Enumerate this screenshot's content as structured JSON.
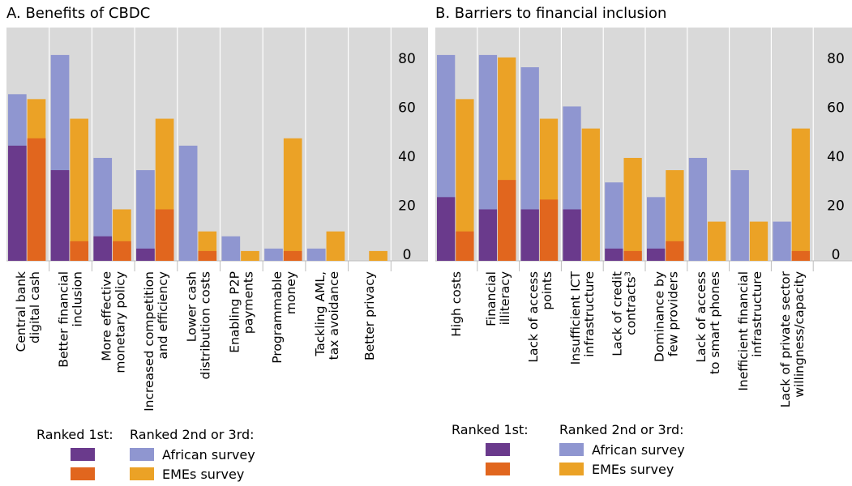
{
  "colors": {
    "african_ranked1": "#6a3a8c",
    "african_ranked23": "#8f96d0",
    "emes_ranked1": "#e1661e",
    "emes_ranked23": "#eba226",
    "panel_bg": "#d9d9d9",
    "grid": "#ffffff"
  },
  "legend": {
    "ranked1_label": "Ranked 1st:",
    "ranked23_label": "Ranked 2nd or 3rd:",
    "african": "African survey",
    "emes": "EMEs survey"
  },
  "chart_data": [
    {
      "type": "bar",
      "title": "A. Benefits of CBDC",
      "yticks": [
        "0",
        "20",
        "40",
        "60",
        "80"
      ],
      "ylim": [
        0,
        100
      ],
      "categories": [
        {
          "lines": [
            "Central bank",
            "digital cash"
          ]
        },
        {
          "lines": [
            "Better financial",
            "inclusion"
          ]
        },
        {
          "lines": [
            "More effective",
            "monetary policy"
          ]
        },
        {
          "lines": [
            "Increased competition",
            "and efficiency"
          ]
        },
        {
          "lines": [
            "Lower cash",
            "distribution costs"
          ]
        },
        {
          "lines": [
            "Enabling P2P",
            "payments"
          ]
        },
        {
          "lines": [
            "Programmable",
            "money"
          ]
        },
        {
          "lines": [
            "Tackling AML,",
            "tax avoidance"
          ]
        },
        {
          "lines": [
            "Better privacy"
          ]
        }
      ],
      "series": [
        {
          "name": "African survey",
          "ranked1": [
            47,
            37,
            10,
            5,
            0,
            0,
            0,
            0,
            0
          ],
          "total": [
            68,
            84,
            42,
            37,
            47,
            10,
            5,
            5,
            0
          ]
        },
        {
          "name": "EMEs survey",
          "ranked1": [
            50,
            8,
            8,
            21,
            4,
            0,
            4,
            0,
            0
          ],
          "total": [
            66,
            58,
            21,
            58,
            12,
            4,
            50,
            12,
            4
          ]
        }
      ]
    },
    {
      "type": "bar",
      "title": "B. Barriers to financial inclusion",
      "yticks": [
        "0",
        "20",
        "40",
        "60",
        "80"
      ],
      "ylim": [
        0,
        100
      ],
      "categories": [
        {
          "lines": [
            "High costs"
          ]
        },
        {
          "lines": [
            "Financial",
            "illiteracy"
          ]
        },
        {
          "lines": [
            "Lack of access",
            "points"
          ]
        },
        {
          "lines": [
            "Insufficient ICT",
            "infrastructure"
          ]
        },
        {
          "lines": [
            "Lack of credit",
            "contracts"
          ],
          "sup": "3"
        },
        {
          "lines": [
            "Dominance by",
            "few providers"
          ]
        },
        {
          "lines": [
            "Lack of access",
            "to smart phones"
          ]
        },
        {
          "lines": [
            "Inefficient financial",
            "infrastructure"
          ]
        },
        {
          "lines": [
            "Lack of private sector",
            "willingness/capacity"
          ]
        }
      ],
      "series": [
        {
          "name": "African survey",
          "ranked1": [
            26,
            21,
            21,
            21,
            5,
            5,
            0,
            0,
            0
          ],
          "total": [
            84,
            84,
            79,
            63,
            32,
            26,
            42,
            37,
            16
          ]
        },
        {
          "name": "EMEs survey",
          "ranked1": [
            12,
            33,
            25,
            0,
            4,
            8,
            0,
            0,
            4
          ],
          "total": [
            66,
            83,
            58,
            54,
            42,
            37,
            16,
            16,
            54
          ]
        }
      ]
    }
  ]
}
